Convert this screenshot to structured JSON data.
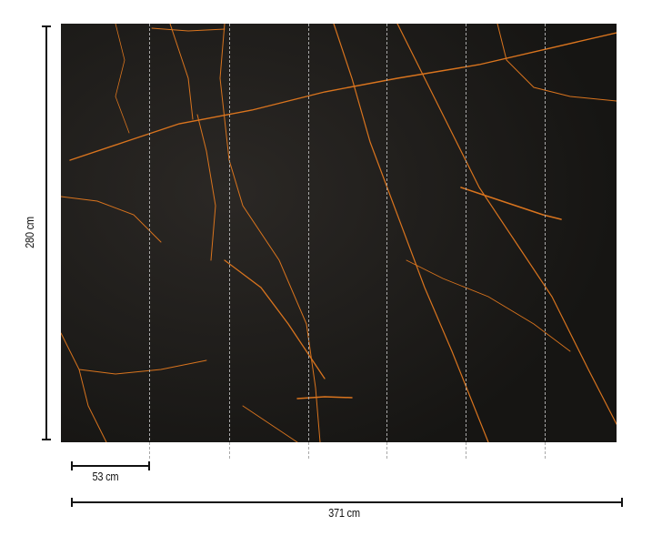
{
  "product": {
    "height_label": "280 cm",
    "width_label": "371 cm",
    "panel_width_label": "53 cm",
    "panel_count": 7,
    "colors": {
      "background": "#1e1c1a",
      "vein": "#d9741e"
    }
  }
}
